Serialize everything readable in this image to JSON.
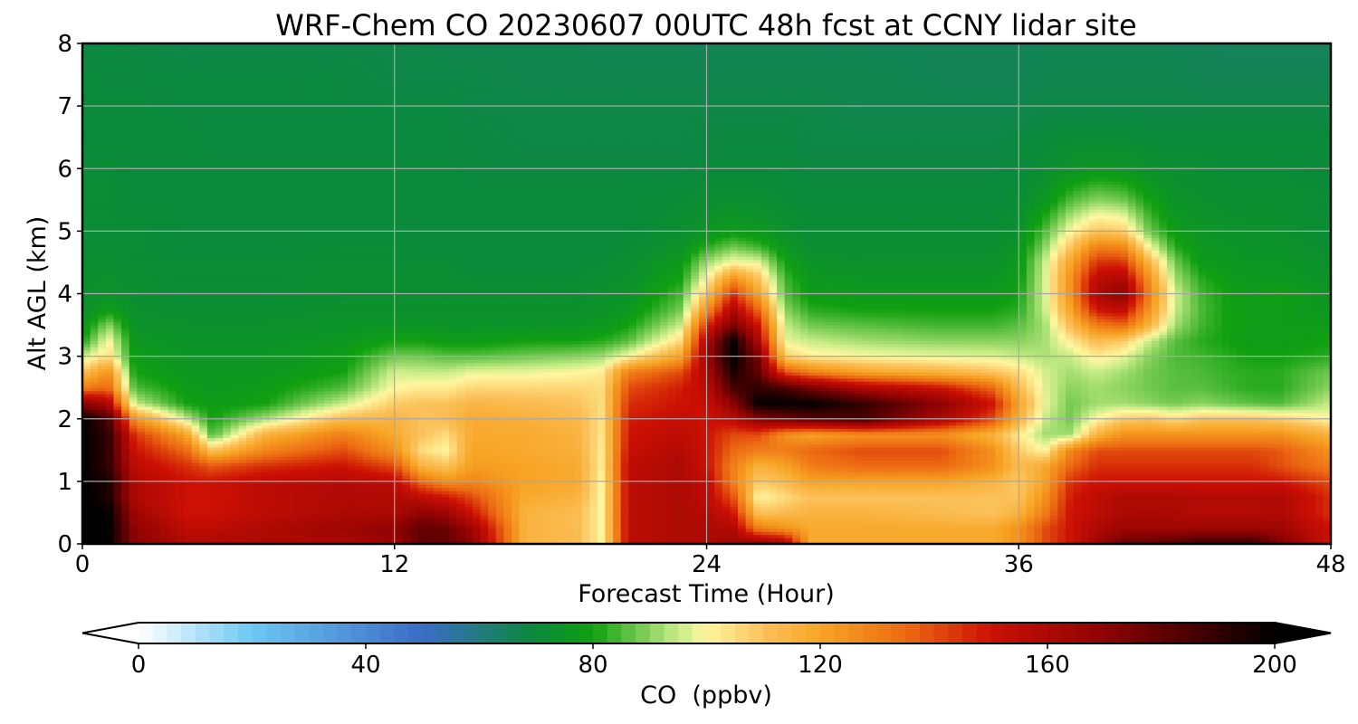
{
  "chart_data": {
    "type": "heatmap",
    "title": "WRF-Chem CO  20230607 00UTC 48h fcst at CCNY lidar site",
    "xlabel": "Forecast Time (Hour)",
    "ylabel": "Alt AGL (km)",
    "xlim": [
      0,
      48
    ],
    "ylim": [
      0,
      8
    ],
    "x_ticks": [
      0,
      12,
      24,
      36,
      48
    ],
    "y_ticks": [
      0,
      1,
      2,
      3,
      4,
      5,
      6,
      7,
      8
    ],
    "grid": true,
    "colorbar": {
      "label": "CO  (ppbv)",
      "range": [
        0,
        200
      ],
      "ticks": [
        0,
        40,
        80,
        120,
        160,
        200
      ],
      "extend": "both",
      "orientation": "horizontal",
      "colors": {
        "0": "#ffffff",
        "20": "#6cc7f3",
        "50": "#3a6cc6",
        "70": "#0a8a3a",
        "80": "#10a010",
        "95": "#c8ec88",
        "100": "#fff7a0",
        "110": "#fbc15a",
        "120": "#f7a424",
        "135": "#ec6a12",
        "150": "#cc1004",
        "170": "#8e0303",
        "185": "#4a0000",
        "200": "#000000"
      }
    },
    "hours": [
      0,
      1,
      2,
      4,
      5,
      7,
      10,
      12,
      13,
      14,
      15,
      17,
      19,
      20,
      21,
      23,
      24,
      25,
      26,
      27,
      28,
      30,
      33,
      35,
      36,
      37,
      38,
      39,
      40,
      41,
      42,
      43,
      44,
      45,
      46,
      48
    ],
    "altitudes_km": [
      0,
      0.25,
      0.5,
      0.75,
      1,
      1.25,
      1.5,
      1.75,
      2,
      2.25,
      2.5,
      2.75,
      3,
      3.25,
      3.5,
      3.75,
      4,
      4.25,
      4.5,
      4.75,
      5,
      5.5,
      6,
      6.5,
      7,
      7.5,
      8
    ],
    "co_ppbv": [
      [
        200,
        200,
        170,
        160,
        160,
        160,
        160,
        165,
        180,
        180,
        170,
        115,
        112,
        100,
        155,
        160,
        160,
        165,
        170,
        165,
        118,
        118,
        118,
        118,
        125,
        140,
        150,
        165,
        180,
        180,
        185,
        190,
        190,
        190,
        175,
        150
      ],
      [
        200,
        200,
        170,
        155,
        155,
        160,
        165,
        170,
        180,
        178,
        165,
        115,
        112,
        100,
        155,
        160,
        160,
        160,
        130,
        125,
        118,
        118,
        118,
        118,
        125,
        140,
        150,
        160,
        165,
        165,
        165,
        165,
        165,
        165,
        165,
        150
      ],
      [
        200,
        200,
        165,
        150,
        150,
        155,
        160,
        160,
        170,
        165,
        150,
        115,
        112,
        100,
        155,
        160,
        158,
        150,
        110,
        112,
        115,
        115,
        112,
        110,
        115,
        130,
        150,
        155,
        160,
        160,
        160,
        158,
        158,
        158,
        160,
        145
      ],
      [
        200,
        195,
        160,
        150,
        150,
        155,
        160,
        160,
        155,
        150,
        140,
        118,
        115,
        100,
        155,
        160,
        155,
        140,
        100,
        105,
        110,
        110,
        110,
        110,
        110,
        125,
        148,
        155,
        160,
        160,
        160,
        158,
        158,
        158,
        160,
        145
      ],
      [
        200,
        195,
        160,
        150,
        150,
        155,
        158,
        155,
        135,
        125,
        128,
        120,
        118,
        100,
        155,
        160,
        155,
        130,
        108,
        112,
        120,
        120,
        120,
        115,
        108,
        120,
        145,
        150,
        150,
        150,
        150,
        150,
        150,
        150,
        150,
        140
      ],
      [
        200,
        190,
        155,
        145,
        138,
        145,
        150,
        140,
        115,
        110,
        122,
        120,
        118,
        102,
        155,
        160,
        150,
        130,
        115,
        120,
        130,
        135,
        135,
        125,
        112,
        118,
        135,
        145,
        145,
        145,
        145,
        145,
        145,
        145,
        140,
        130
      ],
      [
        200,
        190,
        150,
        135,
        110,
        128,
        140,
        125,
        105,
        100,
        120,
        118,
        116,
        102,
        152,
        158,
        150,
        135,
        130,
        130,
        135,
        140,
        140,
        125,
        108,
        100,
        128,
        140,
        140,
        140,
        140,
        140,
        140,
        140,
        138,
        125
      ],
      [
        200,
        190,
        145,
        120,
        85,
        115,
        130,
        118,
        110,
        105,
        118,
        118,
        115,
        103,
        150,
        155,
        150,
        140,
        140,
        125,
        120,
        125,
        125,
        115,
        102,
        92,
        92,
        115,
        125,
        125,
        125,
        125,
        125,
        125,
        125,
        115
      ],
      [
        200,
        185,
        125,
        95,
        80,
        92,
        112,
        115,
        110,
        112,
        118,
        116,
        113,
        104,
        148,
        152,
        150,
        155,
        170,
        175,
        180,
        185,
        160,
        140,
        115,
        95,
        88,
        100,
        108,
        110,
        105,
        110,
        110,
        110,
        108,
        100
      ],
      [
        170,
        160,
        95,
        80,
        78,
        80,
        95,
        108,
        110,
        110,
        114,
        112,
        110,
        105,
        145,
        150,
        152,
        170,
        200,
        200,
        200,
        190,
        170,
        150,
        120,
        98,
        88,
        92,
        92,
        90,
        88,
        90,
        88,
        86,
        85,
        95
      ],
      [
        130,
        135,
        85,
        78,
        76,
        78,
        85,
        100,
        102,
        102,
        106,
        106,
        106,
        105,
        140,
        148,
        155,
        185,
        190,
        185,
        175,
        160,
        150,
        135,
        112,
        97,
        90,
        92,
        90,
        88,
        86,
        86,
        84,
        82,
        82,
        90
      ],
      [
        110,
        125,
        80,
        76,
        76,
        76,
        80,
        96,
        95,
        95,
        98,
        98,
        100,
        102,
        130,
        140,
        160,
        195,
        180,
        140,
        130,
        120,
        115,
        110,
        105,
        96,
        92,
        95,
        92,
        88,
        86,
        85,
        83,
        82,
        82,
        88
      ],
      [
        95,
        105,
        78,
        75,
        75,
        75,
        78,
        88,
        88,
        86,
        86,
        88,
        90,
        92,
        100,
        120,
        165,
        200,
        175,
        108,
        102,
        100,
        98,
        97,
        95,
        93,
        95,
        102,
        98,
        90,
        85,
        84,
        82,
        80,
        80,
        82
      ],
      [
        80,
        100,
        76,
        74,
        74,
        74,
        76,
        80,
        80,
        78,
        78,
        80,
        80,
        82,
        86,
        105,
        160,
        200,
        160,
        98,
        95,
        92,
        90,
        90,
        90,
        92,
        102,
        112,
        108,
        95,
        86,
        82,
        80,
        78,
        78,
        80
      ],
      [
        75,
        90,
        74,
        73,
        73,
        73,
        74,
        75,
        75,
        74,
        74,
        74,
        75,
        76,
        80,
        95,
        145,
        175,
        150,
        95,
        88,
        86,
        84,
        84,
        86,
        92,
        112,
        130,
        135,
        115,
        92,
        84,
        80,
        78,
        78,
        78
      ],
      [
        73,
        78,
        73,
        72,
        72,
        72,
        73,
        73,
        73,
        73,
        73,
        73,
        73,
        74,
        76,
        88,
        125,
        160,
        135,
        90,
        82,
        80,
        80,
        80,
        82,
        95,
        120,
        150,
        155,
        125,
        95,
        85,
        80,
        78,
        78,
        76
      ],
      [
        72,
        74,
        72,
        71,
        71,
        71,
        72,
        72,
        72,
        72,
        72,
        72,
        72,
        73,
        74,
        84,
        110,
        145,
        120,
        86,
        78,
        77,
        77,
        77,
        80,
        96,
        125,
        160,
        170,
        130,
        96,
        84,
        80,
        78,
        80,
        75
      ],
      [
        72,
        73,
        72,
        71,
        71,
        71,
        72,
        72,
        72,
        72,
        71,
        71,
        71,
        72,
        73,
        80,
        100,
        125,
        110,
        84,
        76,
        75,
        75,
        75,
        78,
        96,
        125,
        155,
        160,
        125,
        92,
        82,
        78,
        76,
        76,
        74
      ],
      [
        72,
        72,
        71,
        71,
        71,
        71,
        71,
        71,
        71,
        71,
        70,
        70,
        70,
        71,
        72,
        77,
        92,
        100,
        98,
        80,
        74,
        73,
        73,
        73,
        77,
        95,
        120,
        145,
        145,
        115,
        88,
        78,
        76,
        75,
        75,
        73
      ],
      [
        71,
        71,
        71,
        70,
        70,
        70,
        71,
        71,
        70,
        70,
        70,
        70,
        70,
        70,
        71,
        74,
        82,
        88,
        84,
        76,
        72,
        72,
        72,
        72,
        75,
        90,
        110,
        130,
        128,
        100,
        82,
        76,
        75,
        74,
        74,
        72
      ],
      [
        71,
        71,
        71,
        70,
        70,
        70,
        70,
        70,
        70,
        70,
        70,
        70,
        70,
        70,
        70,
        72,
        75,
        78,
        76,
        73,
        71,
        71,
        71,
        71,
        73,
        85,
        100,
        110,
        108,
        88,
        78,
        75,
        74,
        73,
        73,
        71
      ],
      [
        71,
        71,
        70,
        70,
        70,
        70,
        70,
        70,
        70,
        70,
        70,
        70,
        70,
        70,
        70,
        71,
        72,
        72,
        72,
        71,
        70,
        70,
        70,
        70,
        71,
        76,
        85,
        90,
        88,
        80,
        74,
        73,
        72,
        72,
        72,
        71
      ],
      [
        71,
        71,
        70,
        70,
        70,
        70,
        70,
        70,
        70,
        70,
        69,
        69,
        69,
        69,
        69,
        69,
        70,
        70,
        70,
        70,
        69,
        69,
        69,
        69,
        70,
        72,
        74,
        76,
        75,
        73,
        72,
        72,
        71,
        71,
        71,
        70
      ],
      [
        70,
        70,
        70,
        70,
        69,
        69,
        69,
        69,
        69,
        69,
        69,
        68,
        68,
        68,
        68,
        68,
        69,
        69,
        69,
        69,
        68,
        68,
        68,
        68,
        69,
        70,
        71,
        71,
        71,
        70,
        70,
        70,
        70,
        70,
        70,
        70
      ],
      [
        70,
        70,
        70,
        69,
        69,
        69,
        69,
        69,
        69,
        69,
        68,
        68,
        68,
        68,
        68,
        68,
        68,
        68,
        68,
        68,
        68,
        67,
        67,
        67,
        67,
        68,
        68,
        68,
        68,
        68,
        68,
        68,
        68,
        68,
        68,
        68
      ],
      [
        70,
        69,
        69,
        69,
        69,
        69,
        69,
        68,
        68,
        68,
        68,
        67,
        67,
        67,
        67,
        67,
        67,
        67,
        67,
        67,
        67,
        67,
        66,
        66,
        66,
        67,
        67,
        67,
        67,
        67,
        67,
        66,
        66,
        66,
        66,
        66
      ],
      [
        69,
        69,
        69,
        68,
        68,
        68,
        68,
        68,
        68,
        67,
        67,
        67,
        67,
        66,
        66,
        66,
        66,
        66,
        66,
        66,
        66,
        66,
        66,
        66,
        66,
        66,
        66,
        66,
        66,
        66,
        66,
        66,
        65,
        65,
        65,
        65
      ]
    ]
  }
}
